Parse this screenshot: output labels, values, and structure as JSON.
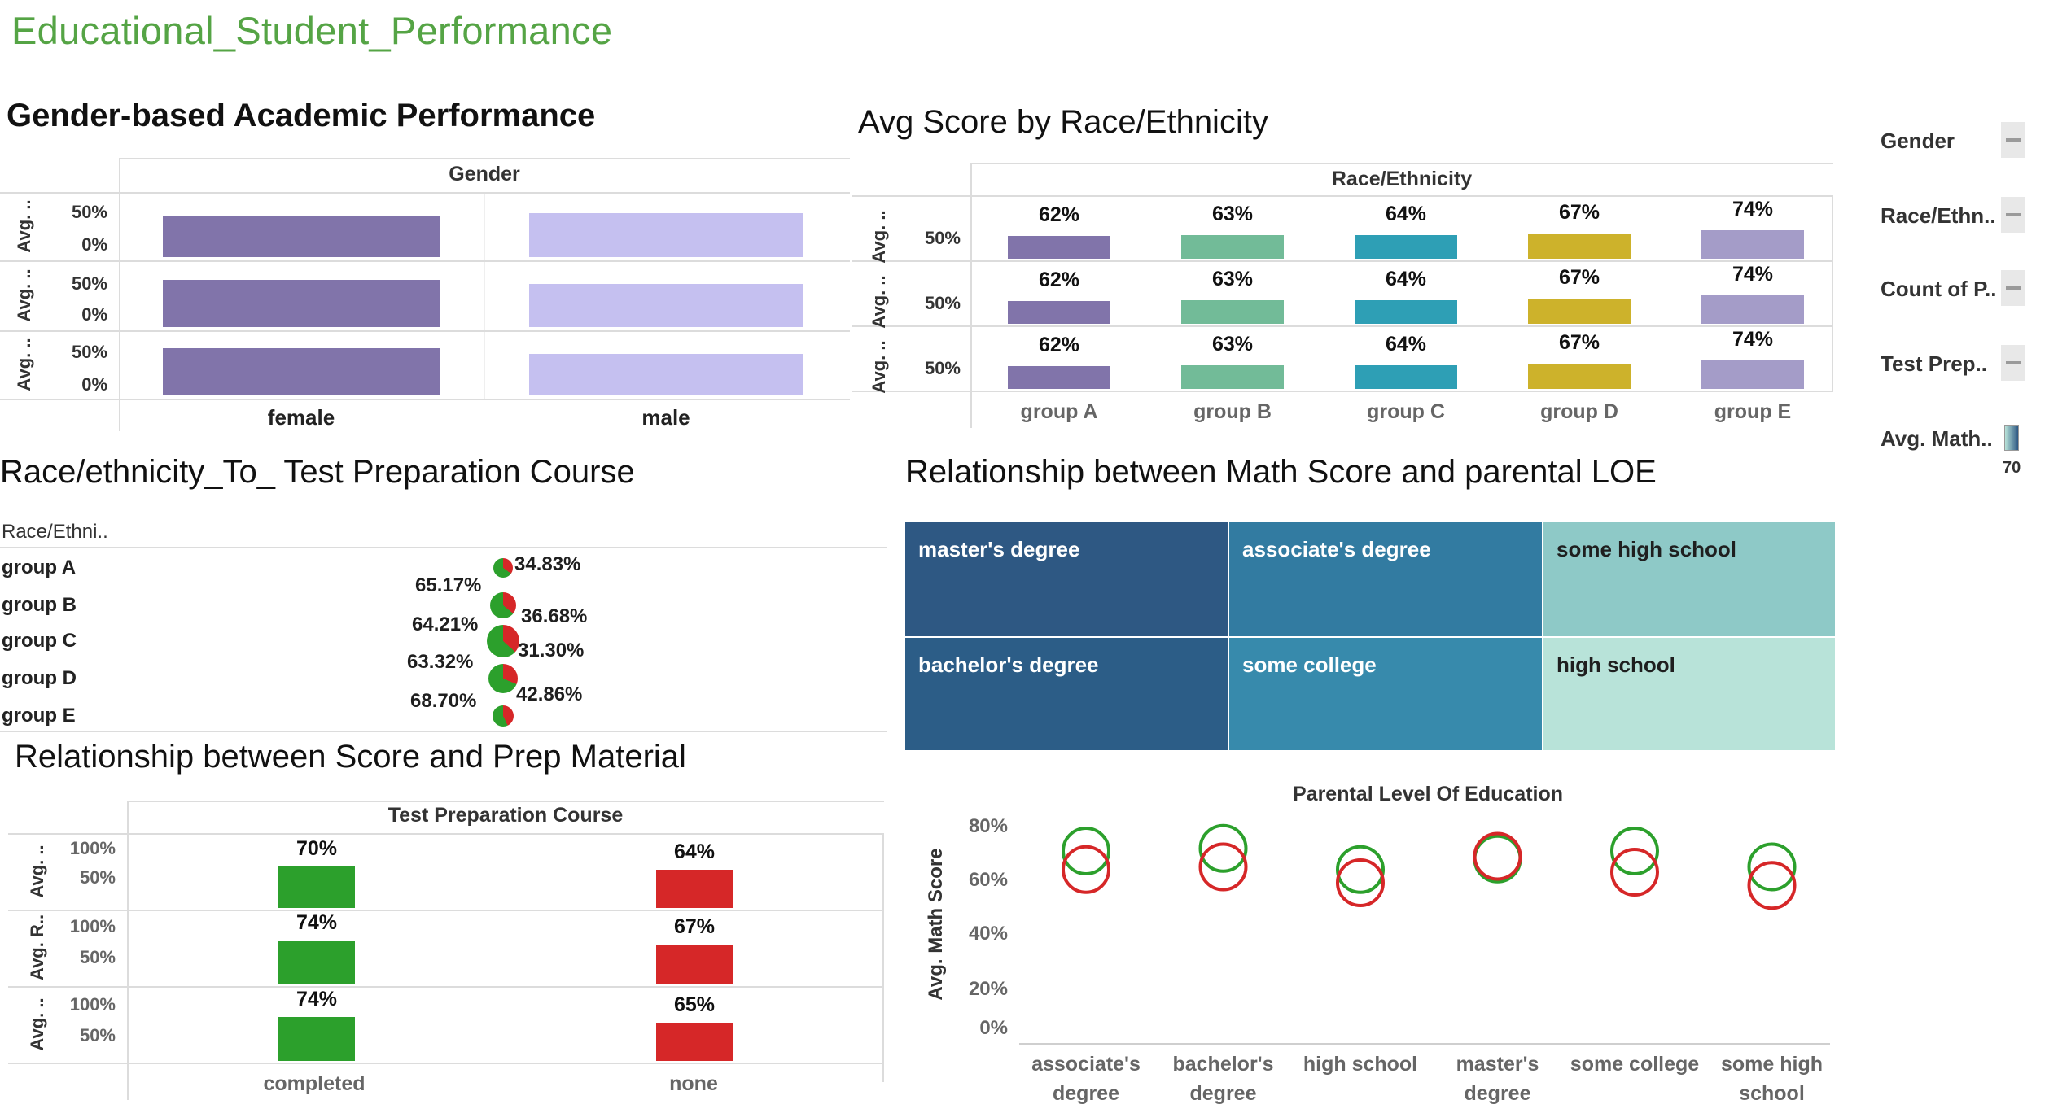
{
  "page": {
    "title": "Educational_Student_Performance"
  },
  "gender_panel": {
    "title": "Gender-based Academic Performance",
    "column_header": "Gender",
    "row_labels": [
      "Avg. ..",
      "Avg. ..",
      "Avg. .."
    ],
    "tick_50": "50%",
    "tick_0": "0%",
    "categories": [
      "female",
      "male"
    ],
    "colors": {
      "female": "#8174aa",
      "male": "#c5c0f0"
    }
  },
  "race_panel": {
    "title": "Avg Score by Race/Ethnicity",
    "column_header": "Race/Ethnicity",
    "row_labels": [
      "Avg. ..",
      "Avg. ..",
      "Avg. .."
    ],
    "tick": "50%",
    "groups": [
      "group A",
      "group B",
      "group C",
      "group D",
      "group E"
    ],
    "values": [
      "62%",
      "63%",
      "64%",
      "67%",
      "74%"
    ],
    "colors": [
      "#8174aa",
      "#72bb98",
      "#2e9fb5",
      "#cdb22b",
      "#a49cc8"
    ]
  },
  "prep_pie_panel": {
    "title": "Race/ethnicity_To_ Test Preparation Course",
    "column_header": "Race/Ethni..",
    "rows": [
      {
        "group": "group A",
        "left": "65.17%",
        "right": "34.83%"
      },
      {
        "group": "group B",
        "left": "64.21%",
        "right": "36.68%"
      },
      {
        "group": "group C",
        "left": "63.32%",
        "right": "31.30%"
      },
      {
        "group": "group D",
        "left": "68.70%",
        "right": "42.86%"
      },
      {
        "group": "group E",
        "left": "",
        "right": ""
      }
    ],
    "colors": {
      "completed": "#2ca02c",
      "none": "#d62728"
    }
  },
  "treemap_panel": {
    "title": "Relationship between Math Score and parental LOE",
    "cells": [
      "master's degree",
      "associate's degree",
      "some high school",
      "bachelor's degree",
      "some college",
      "high school"
    ]
  },
  "prep_score_panel": {
    "title": "Relationship between Score and Prep Material",
    "column_header": "Test Preparation Course",
    "row_labels": [
      "Avg. ..",
      "Avg. R..",
      "Avg. .."
    ],
    "tick_100": "100%",
    "tick_50": "50%",
    "categories": [
      "completed",
      "none"
    ],
    "rows": [
      {
        "completed": "70%",
        "none": "64%"
      },
      {
        "completed": "74%",
        "none": "67%"
      },
      {
        "completed": "74%",
        "none": "65%"
      }
    ]
  },
  "loe_panel": {
    "title": "Parental Level Of Education",
    "ylabel": "Avg. Math Score",
    "ticks": [
      "80%",
      "60%",
      "40%",
      "20%",
      "0%"
    ],
    "categories": [
      "associate's\ndegree",
      "bachelor's\ndegree",
      "high school",
      "master's\ndegree",
      "some college",
      "some high\nschool"
    ]
  },
  "legend": {
    "items": [
      "Gender",
      "Race/Ethn..",
      "Count of P..",
      "Test Prep..",
      "Avg. Math.."
    ],
    "overlap_text": "70"
  },
  "chart_data": [
    {
      "type": "bar",
      "title": "Gender-based Academic Performance",
      "categories": [
        "female",
        "male"
      ],
      "series": [
        {
          "values": [
            64,
            68
          ]
        },
        {
          "values": [
            73,
            66
          ]
        },
        {
          "values": [
            72,
            64
          ]
        }
      ],
      "ylim": [
        0,
        100
      ]
    },
    {
      "type": "bar",
      "title": "Avg Score by Race/Ethnicity",
      "categories": [
        "group A",
        "group B",
        "group C",
        "group D",
        "group E"
      ],
      "series": [
        {
          "values": [
            62,
            63,
            64,
            67,
            74
          ]
        },
        {
          "values": [
            62,
            63,
            64,
            67,
            74
          ]
        },
        {
          "values": [
            62,
            63,
            64,
            67,
            74
          ]
        }
      ]
    },
    {
      "type": "pie",
      "title": "Race/ethnicity_To_ Test Preparation Course",
      "categories": [
        "group A",
        "group B",
        "group C",
        "group D",
        "group E"
      ],
      "series": [
        {
          "values": [
            65.17,
            64.21,
            63.32,
            68.7,
            57.14
          ]
        },
        {
          "values": [
            34.83,
            36.68,
            31.3,
            42.86,
            42.86
          ]
        }
      ]
    },
    {
      "type": "bar",
      "title": "Relationship between Score and Prep Material",
      "categories": [
        "completed",
        "none"
      ],
      "series": [
        {
          "values": [
            70,
            64
          ]
        },
        {
          "values": [
            74,
            67
          ]
        },
        {
          "values": [
            74,
            65
          ]
        }
      ]
    },
    {
      "type": "scatter",
      "title": "Parental Level Of Education",
      "ylabel": "Avg. Math Score",
      "categories": [
        "associate's degree",
        "bachelor's degree",
        "high school",
        "master's degree",
        "some college",
        "some high school"
      ],
      "series": [
        {
          "values": [
            72,
            73,
            65,
            69,
            72,
            66
          ]
        },
        {
          "values": [
            65,
            66,
            60,
            70,
            64,
            59
          ]
        }
      ],
      "ylim": [
        0,
        85
      ]
    }
  ]
}
